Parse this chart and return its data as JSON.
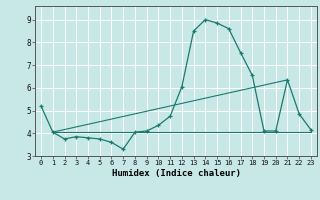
{
  "xlabel": "Humidex (Indice chaleur)",
  "bg_color": "#c8e8e8",
  "grid_color": "#ffffff",
  "line_color": "#1a7a6e",
  "xlim": [
    -0.5,
    23.5
  ],
  "ylim": [
    3.0,
    9.6
  ],
  "xticks": [
    0,
    1,
    2,
    3,
    4,
    5,
    6,
    7,
    8,
    9,
    10,
    11,
    12,
    13,
    14,
    15,
    16,
    17,
    18,
    19,
    20,
    21,
    22,
    23
  ],
  "yticks": [
    3,
    4,
    5,
    6,
    7,
    8,
    9
  ],
  "curve1_x": [
    0,
    1,
    2,
    3,
    4,
    5,
    6,
    7,
    8,
    9,
    10,
    11,
    12,
    13,
    14,
    15,
    16,
    17,
    18,
    19,
    20,
    21,
    22,
    23
  ],
  "curve1_y": [
    5.2,
    4.05,
    3.75,
    3.85,
    3.8,
    3.75,
    3.6,
    3.3,
    4.05,
    4.1,
    4.35,
    4.75,
    6.05,
    8.5,
    9.0,
    8.85,
    8.6,
    7.55,
    6.55,
    4.1,
    4.1,
    6.35,
    4.85,
    4.15
  ],
  "line2_x": [
    1,
    23
  ],
  "line2_y": [
    4.05,
    4.05
  ],
  "line3_x": [
    1,
    21
  ],
  "line3_y": [
    4.05,
    6.35
  ]
}
